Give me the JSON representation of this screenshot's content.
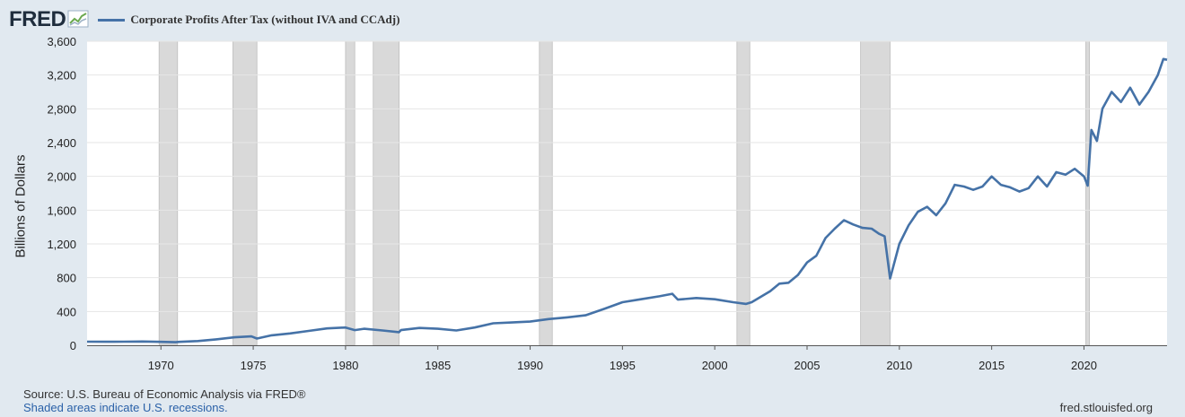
{
  "header": {
    "logo_text": "FRED",
    "legend_label": "Corporate Profits After Tax (without IVA and CCAdj)"
  },
  "colors": {
    "series": "#4572a7",
    "recession": "#d9d9d9",
    "plot_bg": "#ffffff",
    "page_bg": "#e1e9f0"
  },
  "chart_data": {
    "type": "line",
    "title": "Corporate Profits After Tax (without IVA and CCAdj)",
    "ylabel": "Billions of Dollars",
    "xlabel": "",
    "xlim": [
      1966.0,
      2024.5
    ],
    "ylim": [
      0,
      3600
    ],
    "x_ticks": [
      "1970",
      "1975",
      "1980",
      "1985",
      "1990",
      "1995",
      "2000",
      "2005",
      "2010",
      "2015",
      "2020"
    ],
    "y_ticks": [
      "0",
      "400",
      "800",
      "1,200",
      "1,600",
      "2,000",
      "2,400",
      "2,800",
      "3,200",
      "3,600"
    ],
    "grid": "horizontal",
    "legend_position": "top",
    "recessions": [
      [
        1969.9,
        1970.9
      ],
      [
        1973.9,
        1975.2
      ],
      [
        1980.0,
        1980.5
      ],
      [
        1981.5,
        1982.9
      ],
      [
        1990.5,
        1991.2
      ],
      [
        2001.2,
        2001.9
      ],
      [
        2007.9,
        2009.5
      ],
      [
        2020.1,
        2020.3
      ]
    ],
    "series": [
      {
        "name": "Corporate Profits After Tax (without IVA and CCAdj)",
        "x": [
          1966.0,
          1967,
          1968,
          1969,
          1970,
          1970.8,
          1971,
          1972,
          1973,
          1974,
          1974.9,
          1975.2,
          1976,
          1977,
          1978,
          1979,
          1980,
          1980.5,
          1981,
          1982,
          1982.9,
          1983,
          1984,
          1985,
          1986,
          1987,
          1988,
          1989,
          1990,
          1991,
          1992,
          1993,
          1994,
          1995,
          1996,
          1997,
          1997.7,
          1998,
          1999,
          2000,
          2001,
          2001.7,
          2002,
          2003,
          2003.5,
          2004,
          2004.5,
          2005,
          2005.5,
          2006,
          2006.5,
          2007,
          2007.5,
          2008,
          2008.5,
          2008.9,
          2009.2,
          2009.5,
          2010,
          2010.5,
          2011,
          2011.5,
          2012,
          2012.5,
          2013,
          2013.5,
          2014,
          2014.5,
          2015,
          2015.5,
          2016,
          2016.5,
          2017,
          2017.5,
          2018,
          2018.5,
          2019,
          2019.5,
          2020,
          2020.2,
          2020.4,
          2020.7,
          2021,
          2021.5,
          2022,
          2022.5,
          2023,
          2023.5,
          2024,
          2024.3,
          2024.5
        ],
        "values": [
          43,
          41,
          43,
          45,
          40,
          36,
          40,
          50,
          70,
          95,
          105,
          80,
          118,
          140,
          170,
          200,
          210,
          180,
          195,
          175,
          155,
          180,
          205,
          195,
          175,
          210,
          260,
          270,
          280,
          310,
          330,
          355,
          430,
          510,
          545,
          580,
          610,
          540,
          560,
          545,
          510,
          490,
          510,
          640,
          730,
          740,
          830,
          980,
          1060,
          1270,
          1380,
          1480,
          1430,
          1390,
          1380,
          1320,
          1290,
          790,
          1200,
          1420,
          1580,
          1640,
          1540,
          1680,
          1900,
          1880,
          1840,
          1880,
          2000,
          1900,
          1870,
          1820,
          1860,
          2000,
          1880,
          2050,
          2020,
          2090,
          2000,
          1890,
          2550,
          2420,
          2800,
          3000,
          2880,
          3050,
          2850,
          3000,
          3200,
          3390,
          3380
        ]
      }
    ]
  },
  "footer": {
    "source": "Source: U.S. Bureau of Economic Analysis via FRED®",
    "note": "Shaded areas indicate U.S. recessions.",
    "url": "fred.stlouisfed.org"
  }
}
